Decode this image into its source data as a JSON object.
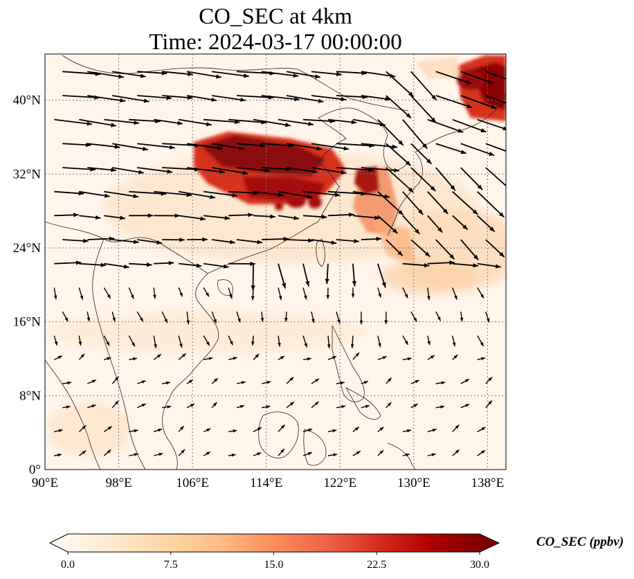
{
  "title": {
    "line1": "CO_SEC at 4km",
    "line2": "Time: 2024-03-17 00:00:00"
  },
  "map": {
    "lon_range": [
      90,
      140
    ],
    "lat_range": [
      0,
      45
    ],
    "lon_ticks": [
      "90°E",
      "98°E",
      "106°E",
      "114°E",
      "122°E",
      "130°E",
      "138°E"
    ],
    "lat_ticks": [
      "0°",
      "8°N",
      "16°N",
      "24°N",
      "32°N",
      "40°N"
    ],
    "gridlines": true,
    "gridline_style": "dotted",
    "coastlines": true,
    "wind_vectors": true
  },
  "colorbar": {
    "label": "CO_SEC (ppbv)",
    "ticks": [
      "0.0",
      "7.5",
      "15.0",
      "22.5",
      "30.0"
    ],
    "min": 0,
    "max": 30,
    "extend": "both",
    "colormap": "OrRd",
    "colors": [
      "#fff7ec",
      "#fee8c8",
      "#fdd49e",
      "#fdbb84",
      "#fc8d59",
      "#ef6548",
      "#d7301f",
      "#b30000",
      "#7f0000"
    ]
  },
  "features": {
    "plume_1": "high CO over central/eastern China (~104-124E, 27-36N)",
    "plume_2": "high CO near Korea/Japan north edge (~132-140E, 38-44N)",
    "plume_3": "moderate CO east of Taiwan (~124-131E, 24-32N)"
  }
}
